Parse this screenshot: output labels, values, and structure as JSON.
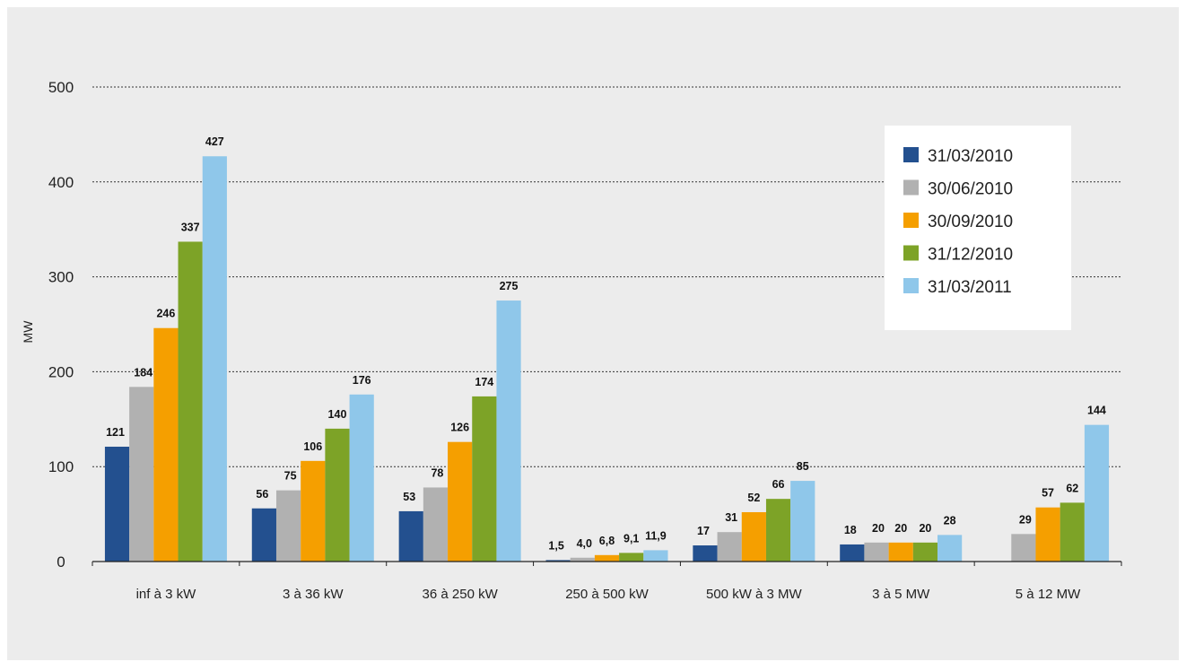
{
  "chart_data": {
    "type": "bar",
    "title": "",
    "xlabel": "",
    "ylabel": "MW",
    "ylim": [
      0,
      500
    ],
    "yticks": [
      "0",
      "100",
      "200",
      "300",
      "400",
      "500"
    ],
    "grid": true,
    "legend_position": "top-right",
    "categories": [
      "inf à 3 kW",
      "3 à 36 kW",
      "36 à 250 kW",
      "250 à 500 kW",
      "500 kW à 3 MW",
      "3 à 5 MW",
      "5 à 12 MW"
    ],
    "series": [
      {
        "name": "31/03/2010",
        "color": "#23508f",
        "values": [
          121,
          56,
          53,
          1.5,
          17,
          18,
          null
        ],
        "labels": [
          "121",
          "56",
          "53",
          "1,5",
          "17",
          "18",
          ""
        ]
      },
      {
        "name": "30/06/2010",
        "color": "#b1b1b1",
        "values": [
          184,
          75,
          78,
          4.0,
          31,
          20,
          29
        ],
        "labels": [
          "184",
          "75",
          "78",
          "4,0",
          "31",
          "20",
          "29"
        ]
      },
      {
        "name": "30/09/2010",
        "color": "#f59f00",
        "values": [
          246,
          106,
          126,
          6.8,
          52,
          20,
          57
        ],
        "labels": [
          "246",
          "106",
          "126",
          "6,8",
          "52",
          "20",
          "57"
        ]
      },
      {
        "name": "31/12/2010",
        "color": "#7da327",
        "values": [
          337,
          140,
          174,
          9.1,
          66,
          20,
          62
        ],
        "labels": [
          "337",
          "140",
          "174",
          "9,1",
          "66",
          "20",
          "62"
        ]
      },
      {
        "name": "31/03/2011",
        "color": "#8fc7ea",
        "values": [
          427,
          176,
          275,
          11.9,
          85,
          28,
          144
        ],
        "labels": [
          "427",
          "176",
          "275",
          "11,9",
          "85",
          "28",
          "144"
        ]
      }
    ]
  }
}
